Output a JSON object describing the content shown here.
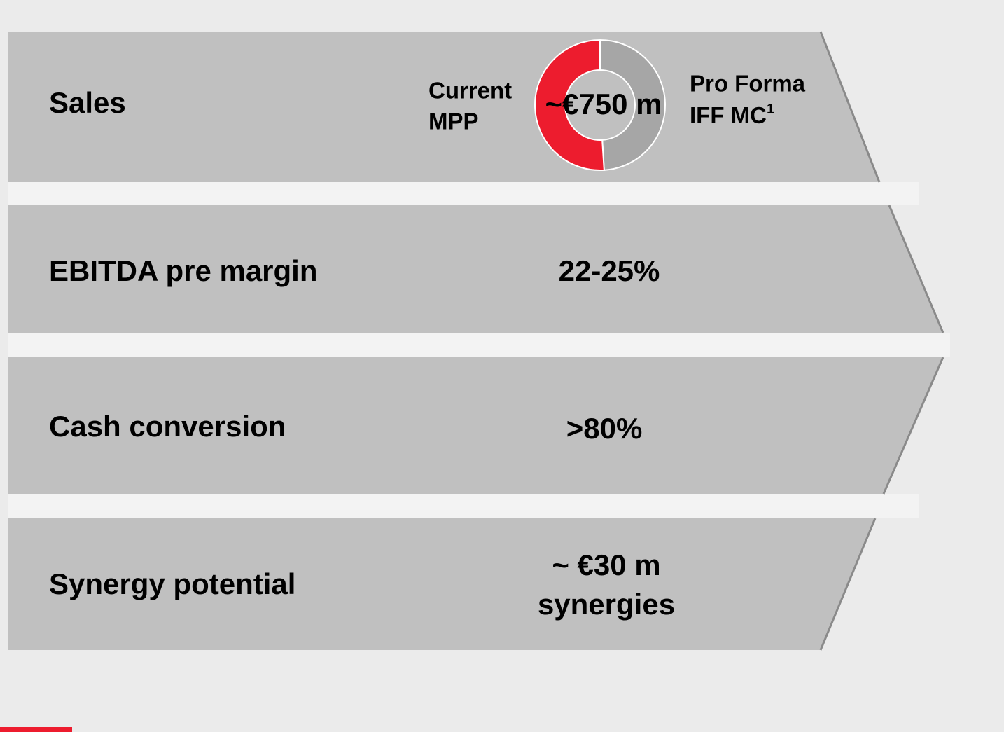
{
  "rows": [
    {
      "label": "Sales",
      "value": "~€750 m"
    },
    {
      "label": "EBITDA pre margin",
      "value": "22-25%"
    },
    {
      "label": "Cash conversion",
      "value": ">80%"
    },
    {
      "label": "Synergy potential",
      "value_lines": [
        "~ €30 m",
        "synergies"
      ]
    }
  ],
  "donut": {
    "type": "pie",
    "series": [
      {
        "name_lines": [
          "Current",
          "MPP"
        ],
        "value": 51,
        "color": "#ed1c2e"
      },
      {
        "name_lines": [
          "Pro Forma",
          "IFF MC"
        ],
        "name_note": "1",
        "value": 49,
        "color": "#a6a6a6"
      }
    ]
  }
}
